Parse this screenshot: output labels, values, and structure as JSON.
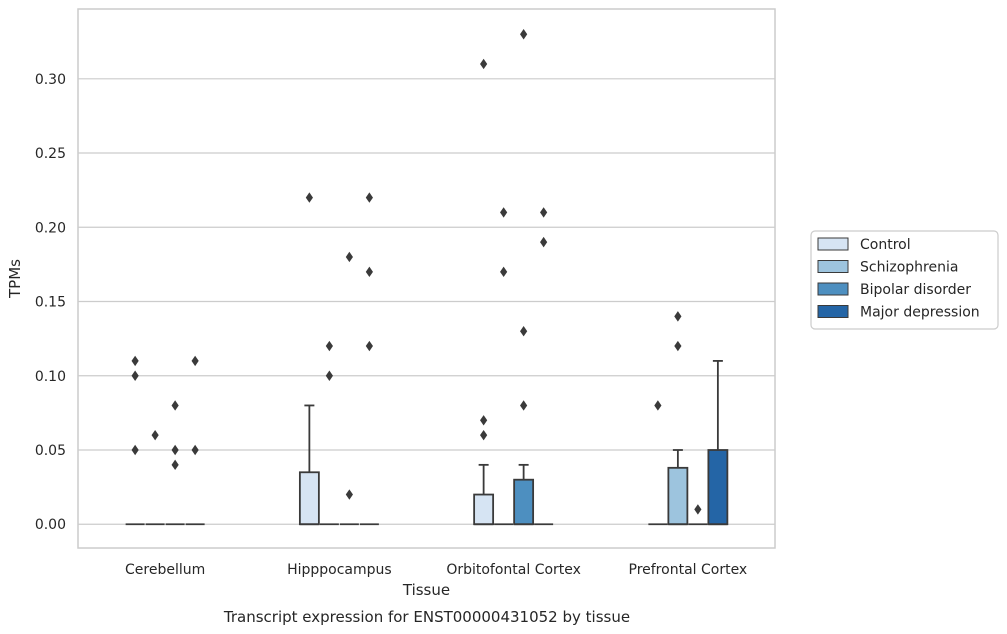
{
  "chart_data": {
    "type": "box",
    "caption": "Transcript expression for ENST00000431052 by tissue",
    "xlabel": "Tissue",
    "ylabel": "TPMs",
    "ylim": [
      -0.016,
      0.347
    ],
    "yticks": [
      "0.00",
      "0.05",
      "0.10",
      "0.15",
      "0.20",
      "0.25",
      "0.30"
    ],
    "grid": true,
    "legend_position": "right",
    "categories": [
      "Cerebellum",
      "Hipppocampus",
      "Orbitofontal Cortex",
      "Prefrontal Cortex"
    ],
    "series": [
      {
        "name": "Control",
        "color": "#d6e4f3",
        "boxes": [
          {
            "q1": 0,
            "median": 0,
            "q3": 0,
            "whisker_low": 0,
            "whisker_high": 0,
            "outliers": [
              0.11,
              0.1,
              0.05
            ]
          },
          {
            "q1": 0,
            "median": 0,
            "q3": 0.035,
            "whisker_low": 0,
            "whisker_high": 0.08,
            "outliers": [
              0.22
            ]
          },
          {
            "q1": 0,
            "median": 0,
            "q3": 0.02,
            "whisker_low": 0,
            "whisker_high": 0.04,
            "outliers": [
              0.31,
              0.07,
              0.06
            ]
          },
          {
            "q1": 0,
            "median": 0,
            "q3": 0,
            "whisker_low": 0,
            "whisker_high": 0,
            "outliers": [
              0.08
            ]
          }
        ]
      },
      {
        "name": "Schizophrenia",
        "color": "#9dc4de",
        "boxes": [
          {
            "q1": 0,
            "median": 0,
            "q3": 0,
            "whisker_low": 0,
            "whisker_high": 0,
            "outliers": [
              0.06
            ]
          },
          {
            "q1": 0,
            "median": 0,
            "q3": 0,
            "whisker_low": 0,
            "whisker_high": 0,
            "outliers": [
              0.12,
              0.1
            ]
          },
          {
            "q1": 0,
            "median": 0,
            "q3": 0,
            "whisker_low": 0,
            "whisker_high": 0,
            "outliers": [
              0.21,
              0.17
            ]
          },
          {
            "q1": 0,
            "median": 0,
            "q3": 0.038,
            "whisker_low": 0,
            "whisker_high": 0.05,
            "outliers": [
              0.14,
              0.12
            ]
          }
        ]
      },
      {
        "name": "Bipolar disorder",
        "color": "#4d8fc0",
        "boxes": [
          {
            "q1": 0,
            "median": 0,
            "q3": 0,
            "whisker_low": 0,
            "whisker_high": 0,
            "outliers": [
              0.08,
              0.05,
              0.04
            ]
          },
          {
            "q1": 0,
            "median": 0,
            "q3": 0,
            "whisker_low": 0,
            "whisker_high": 0,
            "outliers": [
              0.18,
              0.02
            ]
          },
          {
            "q1": 0,
            "median": 0,
            "q3": 0.03,
            "whisker_low": 0,
            "whisker_high": 0.04,
            "outliers": [
              0.33,
              0.13,
              0.08
            ]
          },
          {
            "q1": 0,
            "median": 0,
            "q3": 0,
            "whisker_low": 0,
            "whisker_high": 0,
            "outliers": [
              0.01
            ]
          }
        ]
      },
      {
        "name": "Major depression",
        "color": "#2465a6",
        "boxes": [
          {
            "q1": 0,
            "median": 0,
            "q3": 0,
            "whisker_low": 0,
            "whisker_high": 0,
            "outliers": [
              0.11,
              0.05
            ]
          },
          {
            "q1": 0,
            "median": 0,
            "q3": 0,
            "whisker_low": 0,
            "whisker_high": 0,
            "outliers": [
              0.22,
              0.17,
              0.12
            ]
          },
          {
            "q1": 0,
            "median": 0,
            "q3": 0,
            "whisker_low": 0,
            "whisker_high": 0,
            "outliers": [
              0.21,
              0.19
            ]
          },
          {
            "q1": 0,
            "median": 0,
            "q3": 0.05,
            "whisker_low": 0,
            "whisker_high": 0.11,
            "outliers": []
          }
        ]
      }
    ]
  }
}
